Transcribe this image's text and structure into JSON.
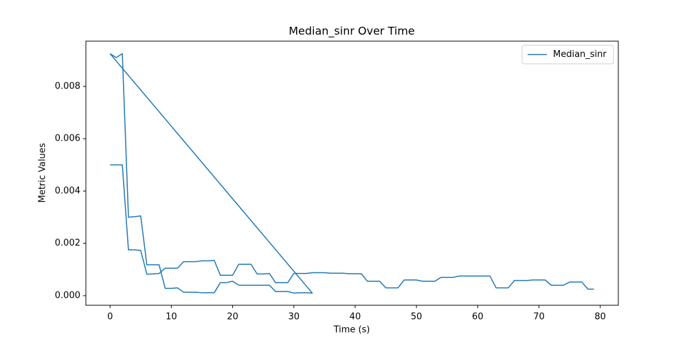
{
  "chart_data": {
    "type": "line",
    "title": "Median_sinr Over Time",
    "xlabel": "Time (s)",
    "ylabel": "Metric Values",
    "x": [
      0,
      1,
      2,
      3,
      4,
      5,
      6,
      7,
      8,
      9,
      10,
      11,
      12,
      13,
      14,
      15,
      16,
      17,
      18,
      19,
      20,
      21,
      22,
      23,
      24,
      25,
      26,
      27,
      28,
      29,
      30,
      31,
      32,
      33,
      34,
      35,
      36,
      37,
      38,
      39,
      40,
      41,
      42,
      43,
      44,
      45,
      46,
      47,
      48,
      49,
      50,
      51,
      52,
      53,
      54,
      55,
      56,
      57,
      58,
      59,
      60,
      61,
      62,
      63,
      64,
      65,
      66,
      67,
      68,
      69,
      70,
      71,
      72,
      73,
      74,
      75,
      76,
      77,
      78,
      79,
      null,
      0,
      1,
      2,
      3,
      4,
      5,
      6,
      7,
      8,
      9,
      10,
      11,
      12,
      13,
      14,
      15,
      16,
      17,
      18,
      19,
      20,
      21,
      22,
      23,
      24,
      25,
      26,
      27,
      28,
      29,
      30,
      31,
      32,
      33,
      0
    ],
    "series": [
      {
        "name": "Median_sinr",
        "color": "#1f77b4",
        "values": [
          0.005,
          0.005,
          0.005,
          0.00175,
          0.00175,
          0.00173,
          0.00082,
          0.00083,
          0.00085,
          0.00105,
          0.00105,
          0.00105,
          0.0013,
          0.0013,
          0.0013,
          0.00133,
          0.00133,
          0.00135,
          0.00078,
          0.00078,
          0.00078,
          0.0012,
          0.0012,
          0.0012,
          0.00083,
          0.00083,
          0.00085,
          0.0005,
          0.0005,
          0.0005,
          0.00085,
          0.00085,
          0.00085,
          0.00088,
          0.00088,
          0.00088,
          0.00086,
          0.00086,
          0.00086,
          0.00084,
          0.00084,
          0.00084,
          0.00055,
          0.00055,
          0.00055,
          0.0003,
          0.0003,
          0.0003,
          0.0006,
          0.0006,
          0.0006,
          0.00055,
          0.00055,
          0.00055,
          0.0007,
          0.0007,
          0.0007,
          0.00075,
          0.00075,
          0.00075,
          0.00075,
          0.00075,
          0.00075,
          0.0003,
          0.0003,
          0.0003,
          0.00058,
          0.00058,
          0.00058,
          0.0006,
          0.0006,
          0.0006,
          0.0004,
          0.0004,
          0.0004,
          0.00052,
          0.00052,
          0.00052,
          0.00025,
          0.00025,
          null,
          0.00925,
          0.0091,
          0.00925,
          0.003,
          0.00302,
          0.00305,
          0.00118,
          0.00118,
          0.00118,
          0.00028,
          0.00028,
          0.0003,
          0.00013,
          0.00013,
          0.00013,
          0.00011,
          0.00011,
          0.00011,
          0.0005,
          0.0005,
          0.00055,
          0.0004,
          0.0004,
          0.0004,
          0.0004,
          0.0004,
          0.0004,
          0.00016,
          0.00016,
          0.00016,
          0.0001,
          0.00011,
          0.00011,
          0.0001,
          0.00925
        ]
      }
    ],
    "xlim": [
      -3.95,
      82.95
    ],
    "ylim": [
      -0.000367,
      0.00973
    ],
    "xticks": [
      0,
      10,
      20,
      30,
      40,
      50,
      60,
      70,
      80
    ],
    "yticks": [
      {
        "value": 0,
        "label": "0.000"
      },
      0.002,
      0.004,
      0.006,
      0.008
    ],
    "legend": "upper right"
  }
}
